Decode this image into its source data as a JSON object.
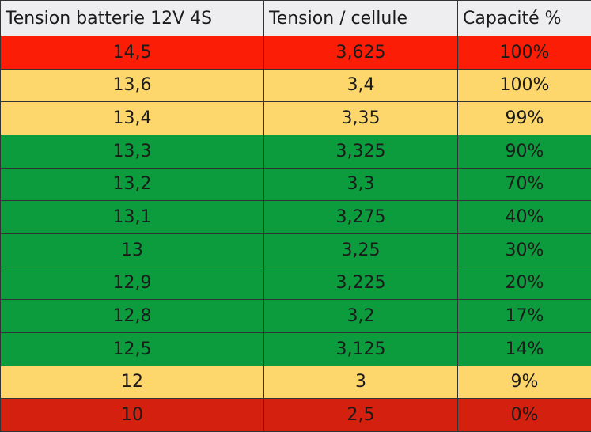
{
  "table": {
    "header": [
      "Tension batterie 12V 4S",
      "Tension / cellule",
      "Capacité %"
    ],
    "rows": [
      [
        "14,5",
        "3,625",
        "100%"
      ],
      [
        "13,6",
        "3,4",
        "100%"
      ],
      [
        "13,4",
        "3,35",
        "99%"
      ],
      [
        "13,3",
        "3,325",
        "90%"
      ],
      [
        "13,2",
        "3,3",
        "70%"
      ],
      [
        "13,1",
        "3,275",
        "40%"
      ],
      [
        "13",
        "3,25",
        "30%"
      ],
      [
        "12,9",
        "3,225",
        "20%"
      ],
      [
        "12,8",
        "3,2",
        "17%"
      ],
      [
        "12,5",
        "3,125",
        "14%"
      ],
      [
        "12",
        "3",
        "9%"
      ],
      [
        "10",
        "2,5",
        "0%"
      ]
    ]
  }
}
